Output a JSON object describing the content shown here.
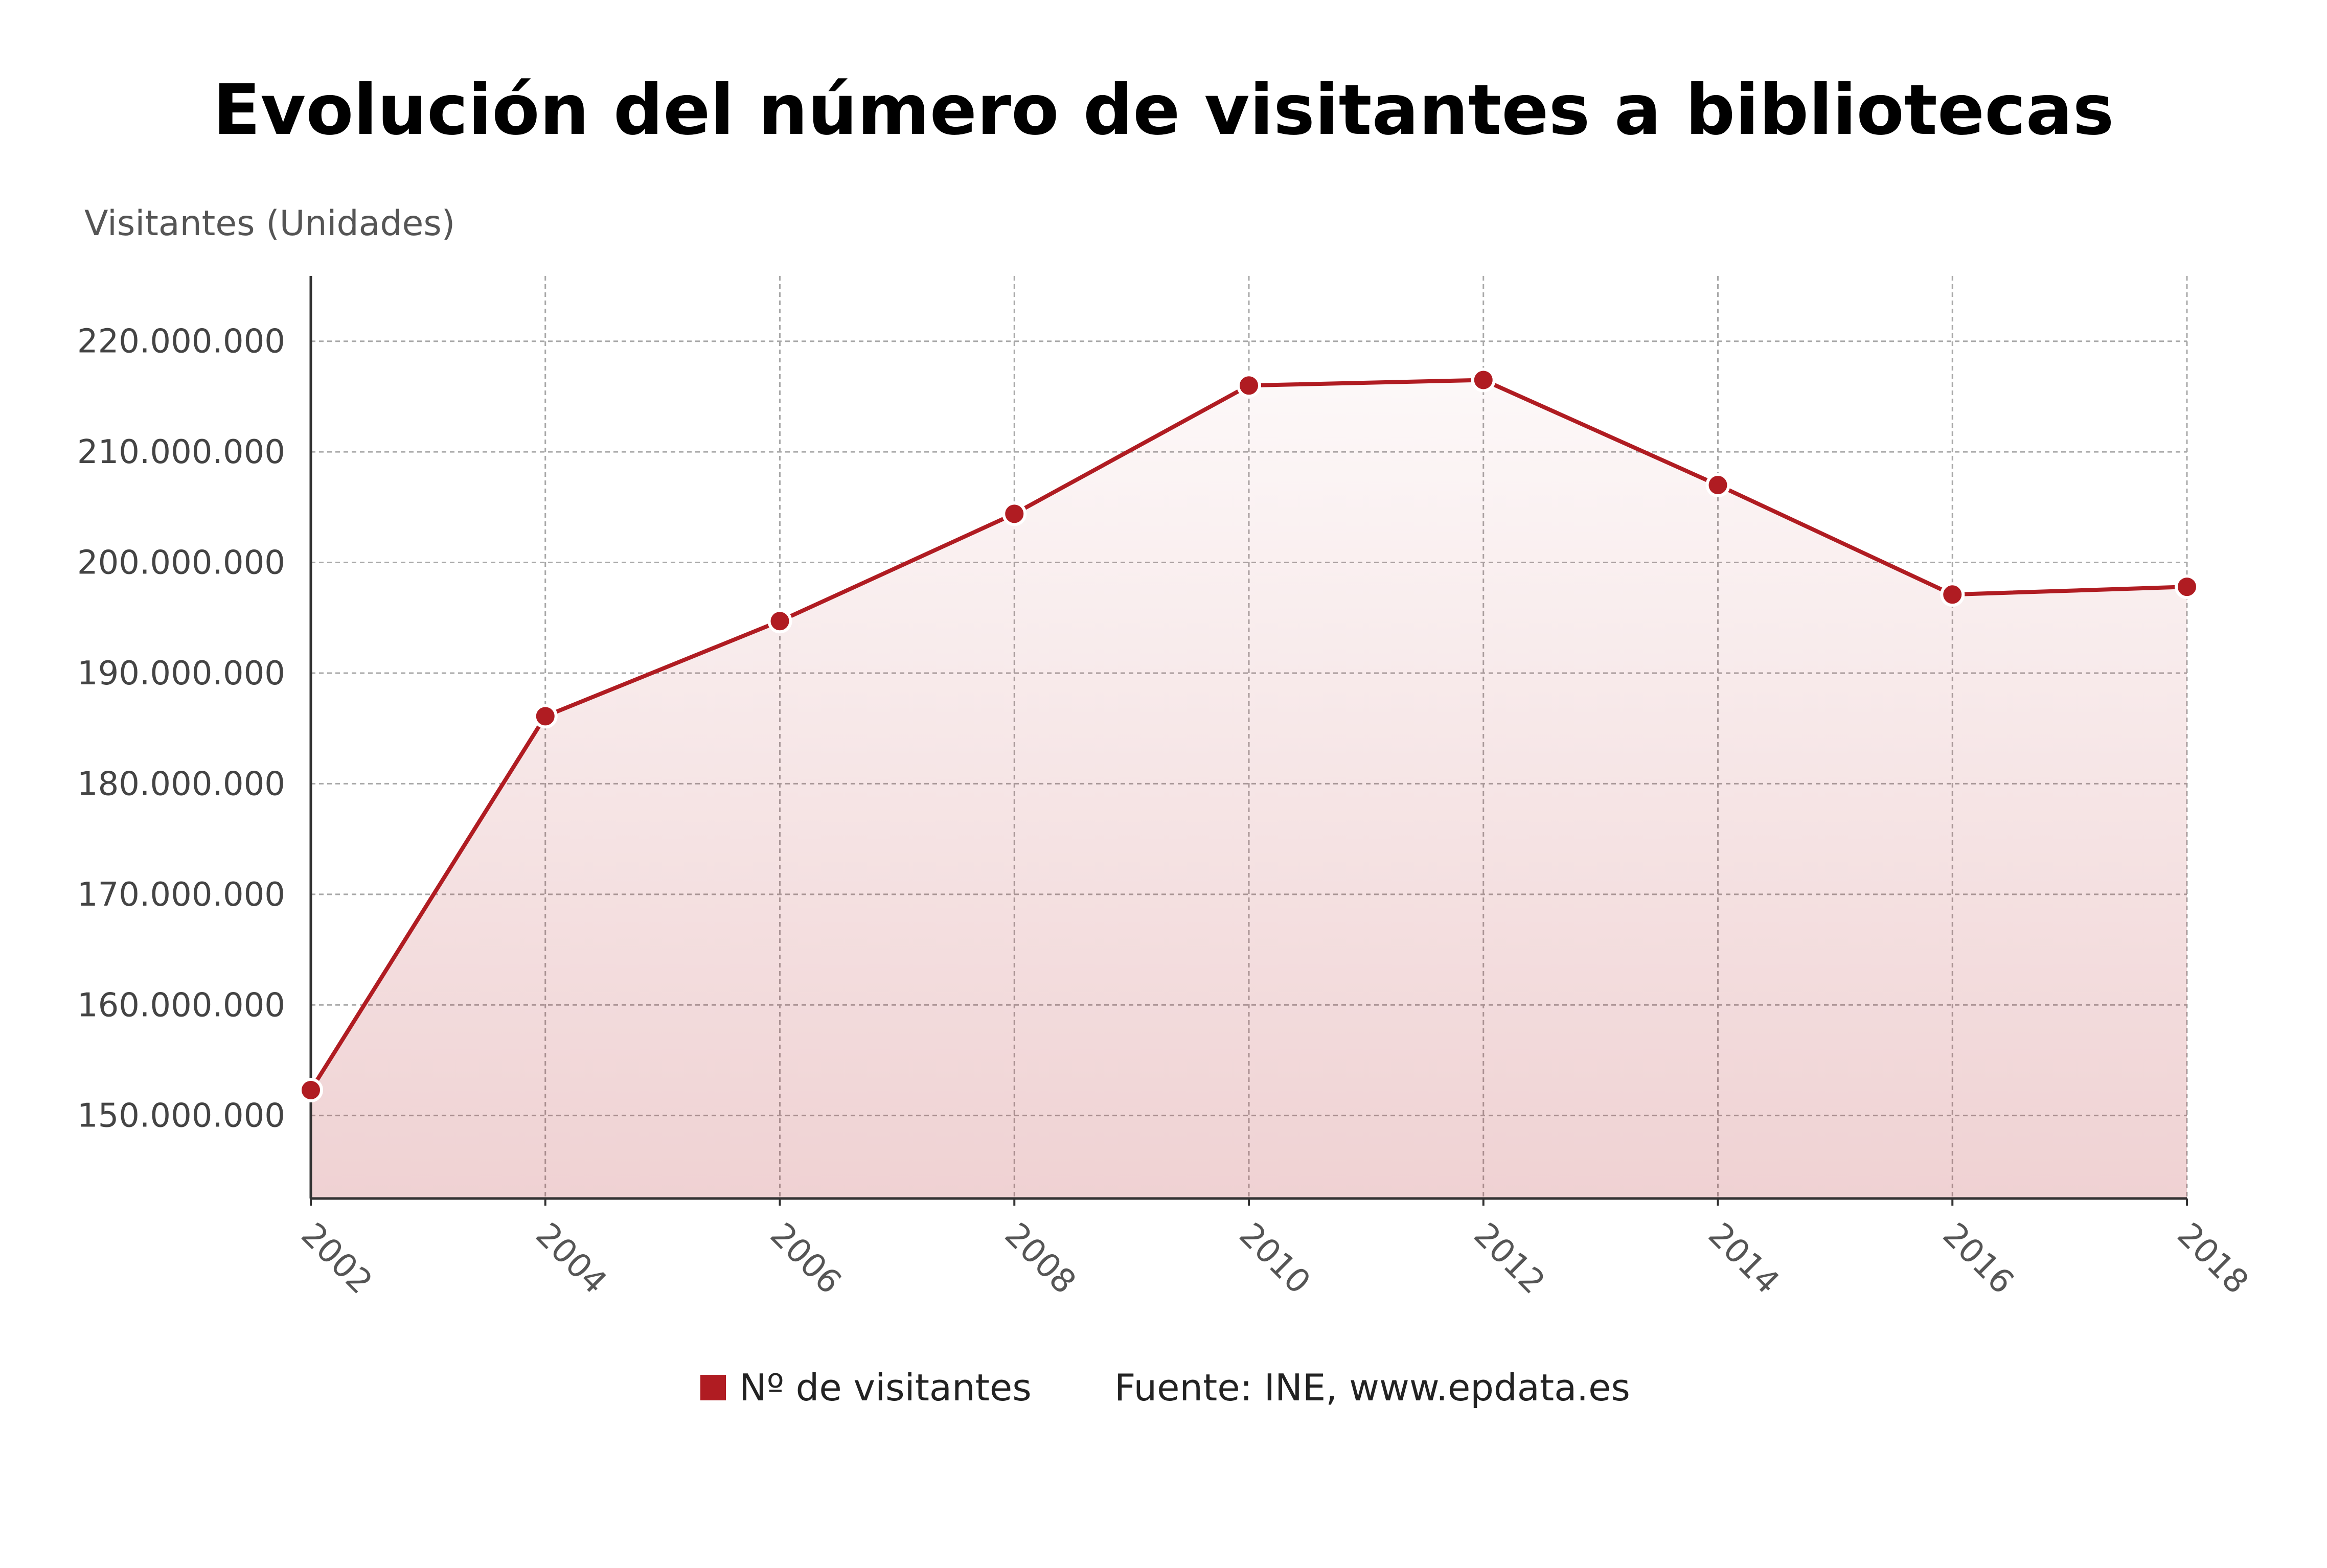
{
  "chart_data": {
    "type": "area",
    "title": "Evolución del número de visitantes a bibliotecas",
    "ylabel": "Visitantes (Unidades)",
    "x": [
      2002,
      2004,
      2006,
      2008,
      2010,
      2012,
      2014,
      2016,
      2018
    ],
    "x_tick_labels": [
      "2002",
      "2004",
      "2006",
      "2008",
      "2010",
      "2012",
      "2014",
      "2016",
      "2018"
    ],
    "ylim": [
      142500000,
      225900000
    ],
    "y_ticks": [
      150000000,
      160000000,
      170000000,
      180000000,
      190000000,
      200000000,
      210000000,
      220000000
    ],
    "y_tick_labels": [
      "150.000.000",
      "160.000.000",
      "170.000.000",
      "180.000.000",
      "190.000.000",
      "200.000.000",
      "210.000.000",
      "220.000.000"
    ],
    "series": [
      {
        "name": "Nº de visitantes",
        "values": [
          152300000,
          186100000,
          194700000,
          204400000,
          216000000,
          216500000,
          207000000,
          197100000,
          197800000
        ],
        "color": "#b01c22"
      }
    ],
    "grid": true,
    "legend_position": "bottom-center",
    "source": "Fuente: INE, www.epdata.es"
  }
}
